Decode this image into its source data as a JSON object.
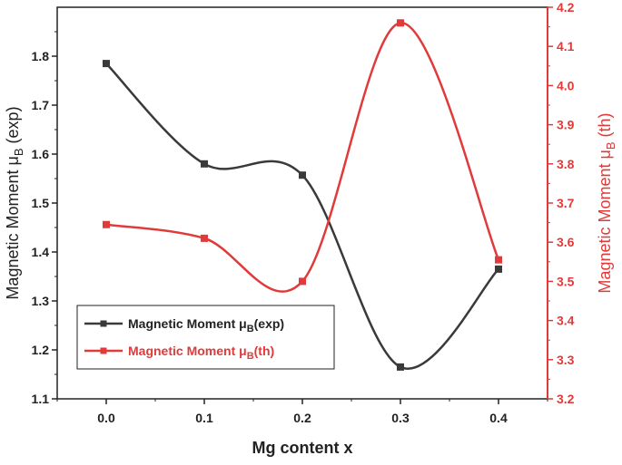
{
  "chart_data": {
    "type": "line",
    "xlabel": "Mg content x",
    "ylabel_left": {
      "main": "Magnetic Moment μ",
      "sub": "B",
      "tail": " (exp)"
    },
    "ylabel_right": {
      "main": "Magnetic Moment μ",
      "sub": "B",
      "tail": " (th)"
    },
    "xlim": [
      -0.05,
      0.45
    ],
    "x_ticks": [
      "0.0",
      "0.1",
      "0.2",
      "0.3",
      "0.4"
    ],
    "ylim_left": [
      1.1,
      1.9
    ],
    "y_ticks_left": [
      "1.1",
      "1.2",
      "1.3",
      "1.4",
      "1.5",
      "1.6",
      "1.7",
      "1.8"
    ],
    "ylim_right": [
      3.2,
      4.2
    ],
    "y_ticks_right": [
      "3.2",
      "3.3",
      "3.4",
      "3.5",
      "3.6",
      "3.7",
      "3.8",
      "3.9",
      "4.0",
      "4.1",
      "4.2"
    ],
    "grid": false,
    "legend_position": "bottom-left",
    "series": [
      {
        "axis": "left",
        "color": "#3a3a3a",
        "legend": {
          "main": "Magnetic Moment μ",
          "sub": "B",
          "tail": "(exp)"
        },
        "x": [
          0.0,
          0.1,
          0.2,
          0.3,
          0.4
        ],
        "y": [
          1.785,
          1.58,
          1.557,
          1.165,
          1.365
        ]
      },
      {
        "axis": "right",
        "color": "#e03a3a",
        "legend": {
          "main": "Magnetic Moment μ",
          "sub": "B",
          "tail": "(th)"
        },
        "x": [
          0.0,
          0.1,
          0.2,
          0.3,
          0.4
        ],
        "y": [
          3.645,
          3.61,
          3.5,
          4.16,
          3.555
        ]
      }
    ]
  }
}
